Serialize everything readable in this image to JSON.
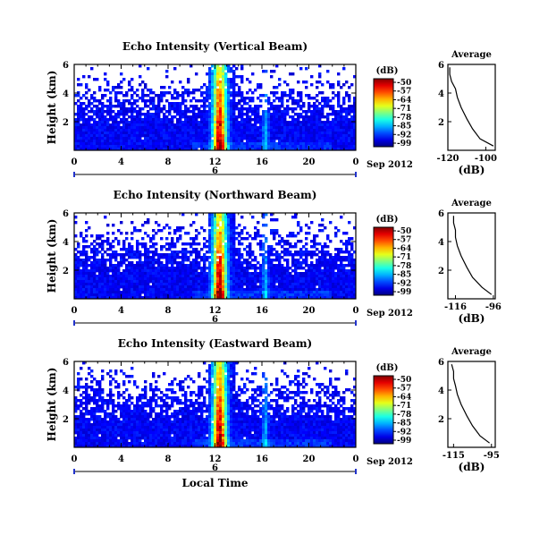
{
  "chart_data": [
    {
      "type": "heatmap",
      "title": "Echo Intensity (Vertical Beam)",
      "ylabel": "Height (km)",
      "x_ticks": [
        "0",
        "4",
        "8",
        "12",
        "16",
        "20",
        "0"
      ],
      "y_ticks": [
        "6",
        "4",
        "2"
      ],
      "date_marker": "6",
      "date_label": "Sep 2012",
      "xlim": [
        0,
        24
      ],
      "ylim": [
        0,
        6
      ],
      "colorbar": {
        "label": "(dB)",
        "ticks": [
          "-50",
          "-57",
          "-64",
          "-71",
          "-78",
          "-85",
          "-92",
          "-99"
        ]
      },
      "profile": {
        "title": "Average",
        "xlabel": "(dB)",
        "x_ticks": [
          "-120",
          "-100"
        ],
        "y_ticks": [
          "6",
          "4",
          "2"
        ],
        "xlim": [
          -120,
          -95
        ],
        "x": [
          -96,
          -103,
          -107,
          -110,
          -113,
          -115,
          -116,
          -118,
          -119,
          -119
        ],
        "y": [
          0.3,
          0.8,
          1.5,
          2.2,
          3.0,
          3.7,
          4.3,
          4.8,
          5.3,
          5.8
        ]
      }
    },
    {
      "type": "heatmap",
      "title": "Echo Intensity (Northward Beam)",
      "ylabel": "Height (km)",
      "x_ticks": [
        "0",
        "4",
        "8",
        "12",
        "16",
        "20",
        "0"
      ],
      "y_ticks": [
        "6",
        "4",
        "2"
      ],
      "date_marker": "6",
      "date_label": "Sep 2012",
      "xlim": [
        0,
        24
      ],
      "ylim": [
        0,
        6
      ],
      "colorbar": {
        "label": "(dB)",
        "ticks": [
          "-50",
          "-57",
          "-64",
          "-71",
          "-78",
          "-85",
          "-92",
          "-99"
        ]
      },
      "profile": {
        "title": "Average",
        "xlabel": "(dB)",
        "x_ticks": [
          "-116",
          "-96"
        ],
        "y_ticks": [
          "6",
          "4",
          "2"
        ],
        "xlim": [
          -120,
          -95
        ],
        "x": [
          -97,
          -102,
          -107,
          -110,
          -113,
          -115,
          -116,
          -116,
          -117,
          -117
        ],
        "y": [
          0.3,
          0.8,
          1.5,
          2.2,
          3.0,
          3.7,
          4.3,
          4.8,
          5.3,
          5.8
        ]
      }
    },
    {
      "type": "heatmap",
      "title": "Echo Intensity (Eastward Beam)",
      "ylabel": "Height (km)",
      "xlabel": "Local Time",
      "x_ticks": [
        "0",
        "4",
        "8",
        "12",
        "16",
        "20",
        "0"
      ],
      "y_ticks": [
        "6",
        "4",
        "2"
      ],
      "date_marker": "6",
      "date_label": "Sep 2012",
      "xlim": [
        0,
        24
      ],
      "ylim": [
        0,
        6
      ],
      "colorbar": {
        "label": "(dB)",
        "ticks": [
          "-50",
          "-57",
          "-64",
          "-71",
          "-78",
          "-85",
          "-92",
          "-99"
        ]
      },
      "profile": {
        "title": "Average",
        "xlabel": "(dB)",
        "x_ticks": [
          "-115",
          "-95"
        ],
        "y_ticks": [
          "6",
          "4",
          "2"
        ],
        "xlim": [
          -118,
          -93
        ],
        "x": [
          -96,
          -101,
          -105,
          -108,
          -111,
          -113,
          -114,
          -115,
          -115,
          -116
        ],
        "y": [
          0.3,
          0.8,
          1.5,
          2.2,
          3.0,
          3.7,
          4.3,
          4.8,
          5.3,
          5.8
        ]
      }
    }
  ]
}
